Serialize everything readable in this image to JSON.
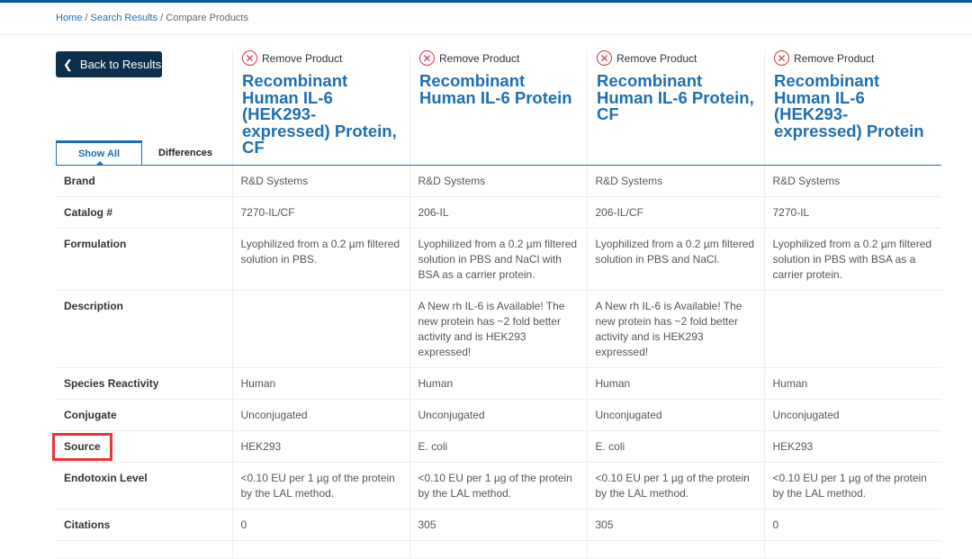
{
  "breadcrumb": [
    "Home",
    "Search Results",
    "Compare Products"
  ],
  "back_label": "Back to Results",
  "tabs": [
    "Show All",
    "Differences"
  ],
  "remove_label": "Remove Product",
  "products": [
    "Recombinant Human IL-6 (HEK293-expressed) Protein, CF",
    "Recombinant Human IL-6 Protein",
    "Recombinant Human IL-6 Protein, CF",
    "Recombinant Human IL-6 (HEK293-expressed) Protein"
  ],
  "rows": [
    {
      "label": "Brand",
      "values": [
        "R&D Systems",
        "R&D Systems",
        "R&D Systems",
        "R&D Systems"
      ]
    },
    {
      "label": "Catalog #",
      "values": [
        "7270-IL/CF",
        "206-IL",
        "206-IL/CF",
        "7270-IL"
      ]
    },
    {
      "label": "Formulation",
      "values": [
        "Lyophilized from a 0.2 µm filtered solution in PBS.",
        "Lyophilized from a 0.2 µm filtered solution in PBS and NaCl with BSA as a carrier protein.",
        "Lyophilized from a 0.2 µm filtered solution in PBS and NaCl.",
        "Lyophilized from a 0.2 µm filtered solution in PBS with BSA as a carrier protein."
      ]
    },
    {
      "label": "Description",
      "values": [
        "",
        "A New rh IL-6 is Available! The new protein has ~2 fold better activity and is HEK293 expressed!",
        "A New rh IL-6 is Available! The new protein has ~2 fold better activity and is HEK293 expressed!",
        ""
      ]
    },
    {
      "label": "Species Reactivity",
      "values": [
        "Human",
        "Human",
        "Human",
        "Human"
      ]
    },
    {
      "label": "Conjugate",
      "values": [
        "Unconjugated",
        "Unconjugated",
        "Unconjugated",
        "Unconjugated"
      ]
    },
    {
      "label": "Source",
      "values": [
        "HEK293",
        "E. coli",
        "E. coli",
        "HEK293"
      ],
      "highlighted": true
    },
    {
      "label": "Endotoxin Level",
      "values": [
        "<0.10 EU per 1 µg of the protein by the LAL method.",
        "<0.10 EU per 1 µg of the protein by the LAL method.",
        "<0.10 EU per 1 µg of the protein by the LAL method.",
        "<0.10 EU per 1 µg of the protein by the LAL method."
      ]
    },
    {
      "label": "Citations",
      "values": [
        "0",
        "305",
        "305",
        "0"
      ]
    },
    {
      "label": "",
      "values": [
        "",
        "",
        "",
        ""
      ]
    }
  ],
  "colors": {
    "accent": "#1f6fb0",
    "button": "#0c2f4d",
    "highlight": "#e8363a"
  }
}
